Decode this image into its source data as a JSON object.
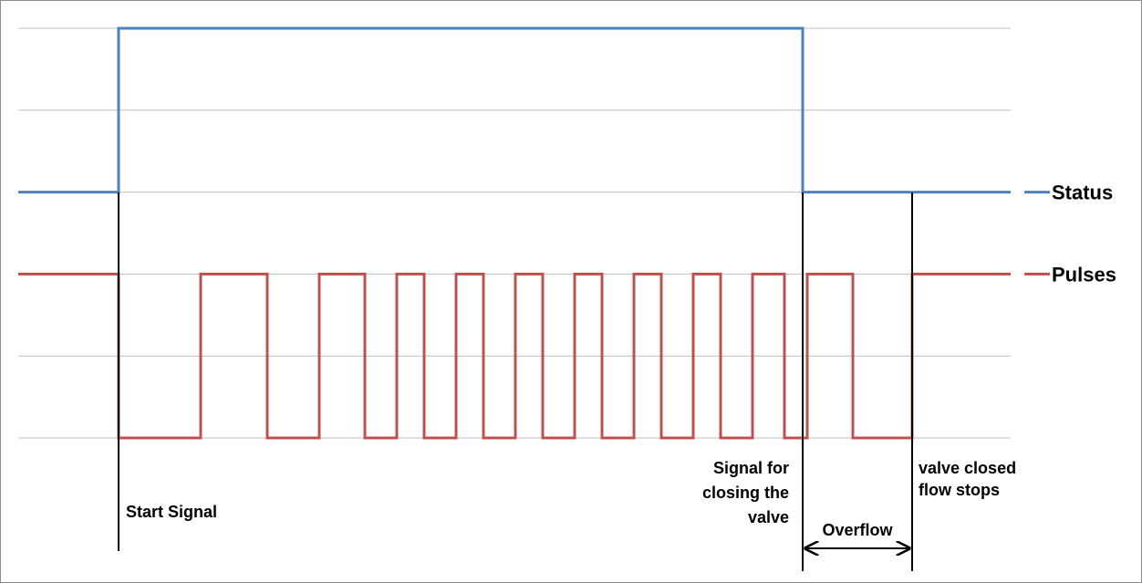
{
  "chart_data": {
    "type": "line",
    "title": "",
    "xlabel": "",
    "ylabel": "",
    "grid": true,
    "legend_position": "right",
    "ylim": [
      0,
      5
    ],
    "xlim": [
      0,
      1088
    ],
    "series": [
      {
        "name": "Status",
        "color": "#4f81bd",
        "x": [
          0,
          110,
          110,
          860,
          860,
          1088
        ],
        "y": [
          3,
          3,
          5,
          5,
          3,
          3
        ]
      },
      {
        "name": "Pulses",
        "color": "#c0504d",
        "x": [
          0,
          110,
          110,
          200,
          200,
          273,
          273,
          330,
          330,
          380,
          380,
          415,
          415,
          445,
          445,
          480,
          480,
          510,
          510,
          545,
          545,
          575,
          575,
          610,
          610,
          640,
          640,
          675,
          675,
          705,
          705,
          740,
          740,
          770,
          770,
          805,
          805,
          840,
          840,
          865,
          865,
          915,
          915,
          980,
          980,
          1088
        ],
        "y": [
          2,
          2,
          0,
          0,
          2,
          2,
          0,
          0,
          2,
          2,
          0,
          0,
          2,
          2,
          0,
          0,
          2,
          2,
          0,
          0,
          2,
          2,
          0,
          0,
          2,
          2,
          0,
          0,
          2,
          2,
          0,
          0,
          2,
          2,
          0,
          0,
          2,
          2,
          0,
          0,
          2,
          2,
          0,
          0,
          2,
          2
        ]
      }
    ],
    "markers": [
      {
        "x": 110,
        "text": [
          "Start Signal"
        ]
      },
      {
        "x": 860,
        "text": [
          "Signal for",
          "closing the",
          "valve"
        ]
      },
      {
        "x": 980,
        "text": [
          "valve closed",
          "flow stops"
        ]
      }
    ],
    "span": {
      "from": 860,
      "to": 980,
      "text": "Overflow"
    }
  }
}
